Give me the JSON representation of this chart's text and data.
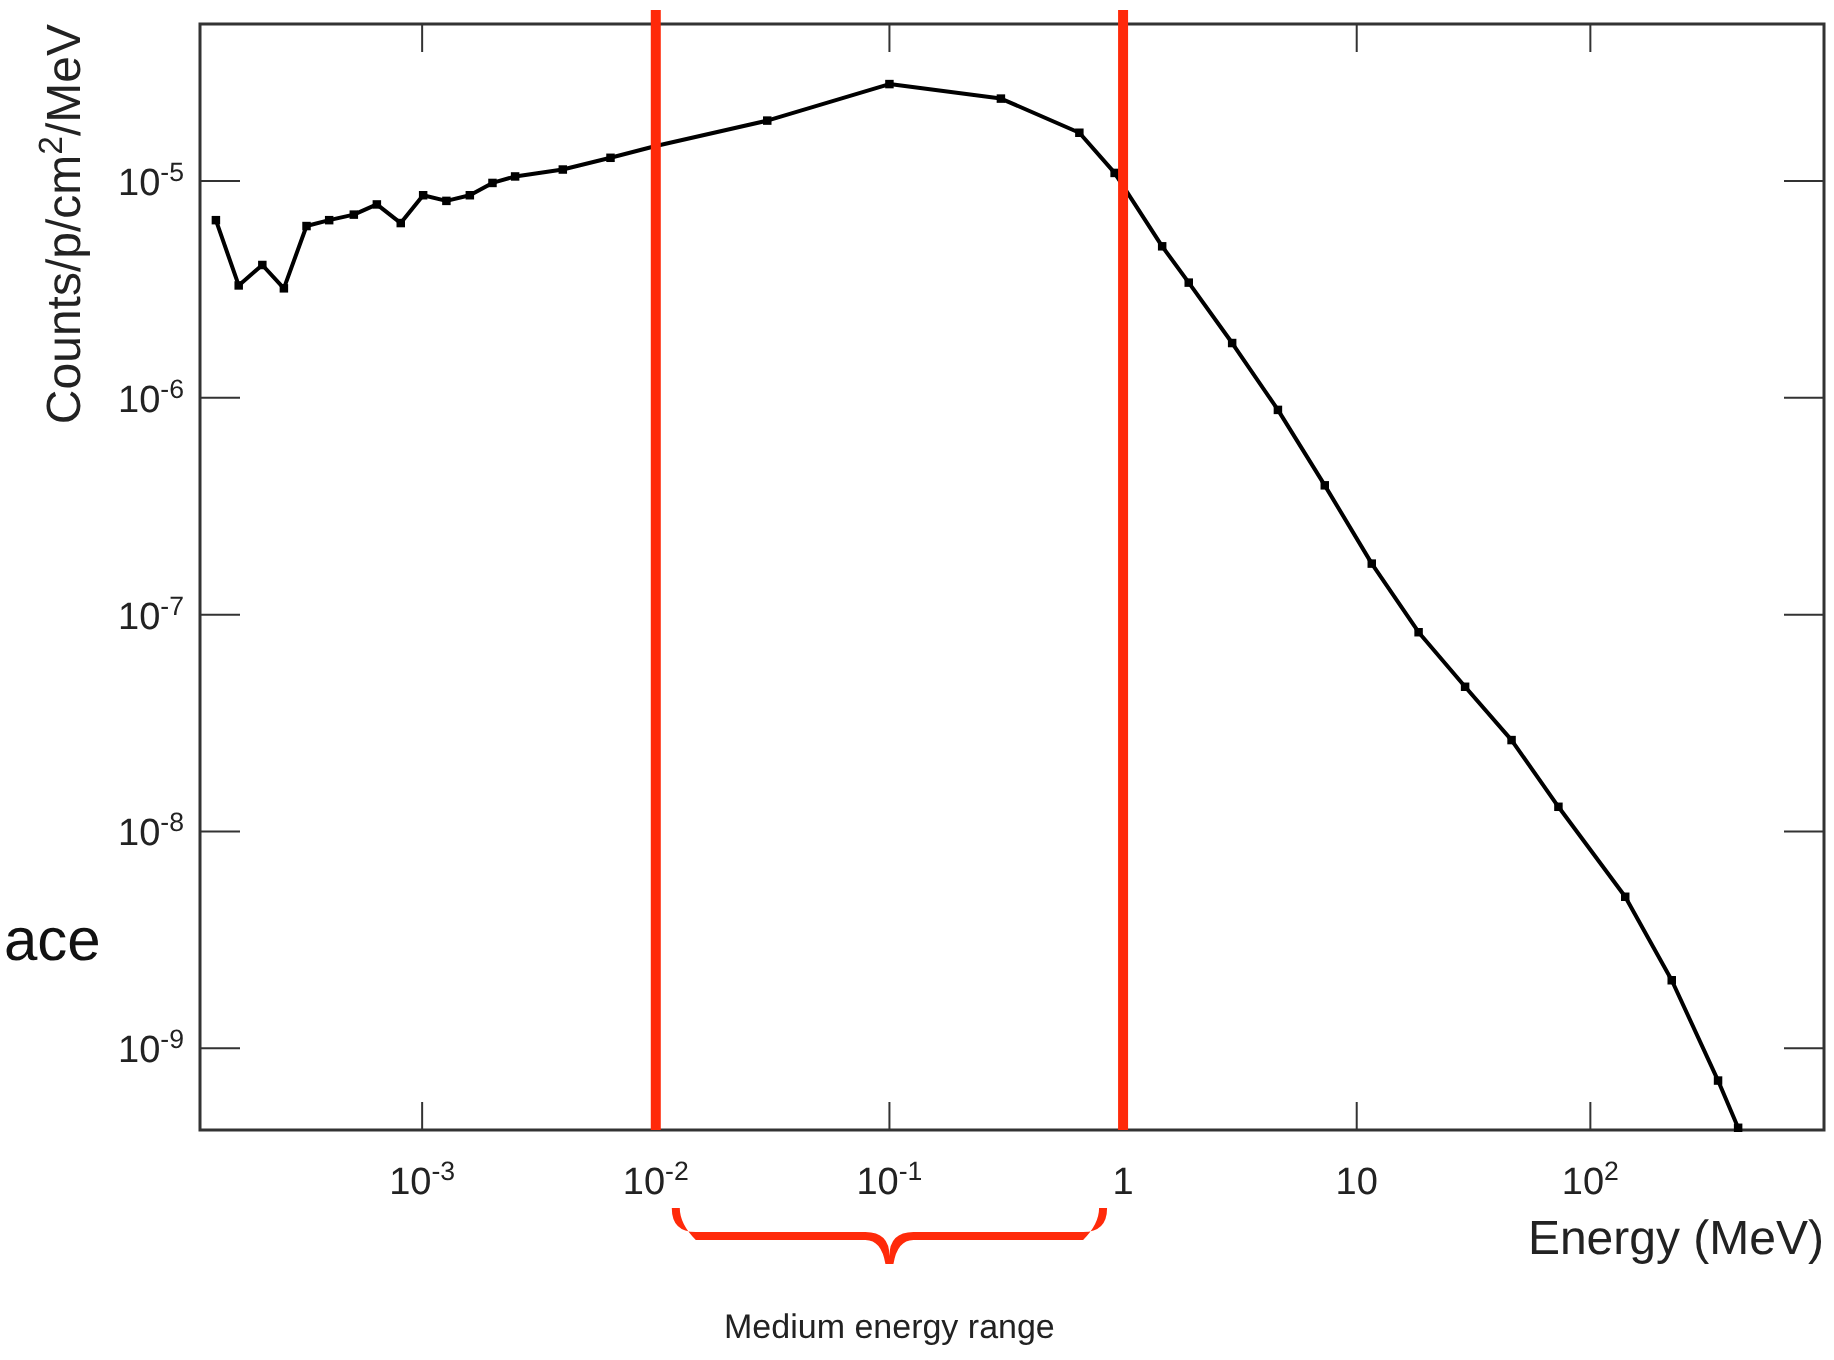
{
  "chart_data": {
    "type": "line",
    "xlabel": "Energy (MeV)",
    "ylabel": "Counts/p/cm$^{2}$/MeV",
    "log": "xy",
    "grid": false,
    "marker": "square",
    "line_style": "solid",
    "xlim": [
      0.000112,
      1000
    ],
    "ylim": [
      4.2e-10,
      5.3e-05
    ],
    "xticks": [
      {
        "value": 0.001,
        "label": "10$^{-3}$"
      },
      {
        "value": 0.01,
        "label": "10$^{-2}$"
      },
      {
        "value": 0.1,
        "label": "10$^{-1}$"
      },
      1,
      10,
      {
        "value": 100,
        "label": "10$^{2}$"
      }
    ],
    "yticks": [
      {
        "value": 1e-09,
        "label": "10$^{-9}$"
      },
      {
        "value": 1e-08,
        "label": "10$^{-8}$"
      },
      {
        "value": 1e-07,
        "label": "10$^{-7}$"
      },
      {
        "value": 1e-06,
        "label": "10$^{-6}$"
      },
      {
        "value": 1e-05,
        "label": "10$^{-5}$"
      }
    ],
    "series": [
      {
        "color": "#000000",
        "x": [
          0.000131,
          0.000164,
          0.000207,
          0.000256,
          0.00032,
          0.0004,
          0.00051,
          0.00064,
          0.00081,
          0.00101,
          0.00127,
          0.0016,
          0.002,
          0.0025,
          0.004,
          0.0064,
          0.01,
          0.03,
          0.1,
          0.3,
          0.65,
          0.92,
          1.47,
          1.91,
          2.93,
          4.6,
          7.3,
          11.6,
          18.4,
          29.1,
          46,
          73,
          141,
          223,
          352,
          429
        ],
        "values": [
          6.6e-06,
          3.3e-06,
          4.1e-06,
          3.2e-06,
          6.2e-06,
          6.6e-06,
          7e-06,
          7.8e-06,
          6.4e-06,
          8.6e-06,
          8.1e-06,
          8.6e-06,
          9.8e-06,
          1.05e-05,
          1.13e-05,
          1.28e-05,
          1.45e-05,
          1.9e-05,
          2.8e-05,
          2.4e-05,
          1.67e-05,
          1.09e-05,
          5e-06,
          3.4e-06,
          1.79e-06,
          8.8e-07,
          3.95e-07,
          1.72e-07,
          8.3e-08,
          4.65e-08,
          2.64e-08,
          1.3e-08,
          5e-09,
          2.06e-09,
          7.1e-10,
          4.3e-10
        ]
      }
    ],
    "ref_lines": [
      {
        "axis": "x",
        "value": 0.01,
        "color": "#ff2a0a"
      },
      {
        "axis": "x",
        "value": 1,
        "color": "#ff2a0a"
      }
    ],
    "annotations": [
      "Medium energy range",
      "ace"
    ]
  }
}
